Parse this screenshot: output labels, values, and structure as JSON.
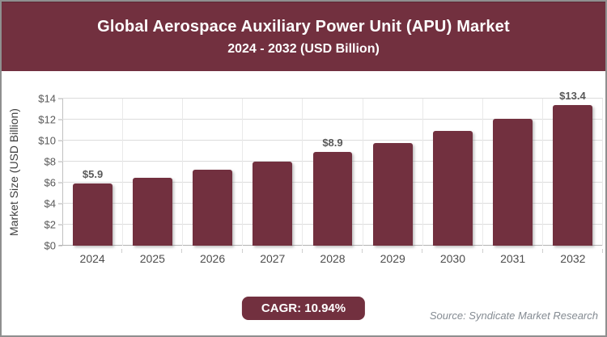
{
  "header": {
    "title_line1": "Global Aerospace Auxiliary Power Unit (APU) Market",
    "title_line2": "2024 - 2032 (USD Billion)"
  },
  "chart_data": {
    "type": "bar",
    "title": "Global Aerospace Auxiliary Power Unit (APU) Market 2024 - 2032 (USD Billion)",
    "categories": [
      "2024",
      "2025",
      "2026",
      "2027",
      "2028",
      "2029",
      "2030",
      "2031",
      "2032"
    ],
    "values": [
      5.9,
      6.5,
      7.2,
      8.0,
      8.9,
      9.8,
      10.9,
      12.1,
      13.4
    ],
    "data_labels": [
      "$5.9",
      "",
      "",
      "",
      "$8.9",
      "",
      "",
      "",
      "$13.4"
    ],
    "xlabel": "",
    "ylabel": "Market Size (USD Billion)",
    "ylim": [
      0,
      14
    ],
    "ytick_step": 2,
    "yticks": [
      "$0",
      "$2",
      "$4",
      "$6",
      "$8",
      "$10",
      "$12",
      "$14"
    ],
    "grid": true,
    "legend": "none",
    "bar_color": "#72303f"
  },
  "footer": {
    "cagr_label": "CAGR: 10.94%",
    "source": "Source: Syndicate Market Research"
  },
  "colors": {
    "accent": "#72303f",
    "header_bg": "#72303f",
    "grid_line": "#dcdcdc",
    "axis_line": "#c0c0c0",
    "tick_text": "#595959",
    "source_text": "#848b92"
  }
}
